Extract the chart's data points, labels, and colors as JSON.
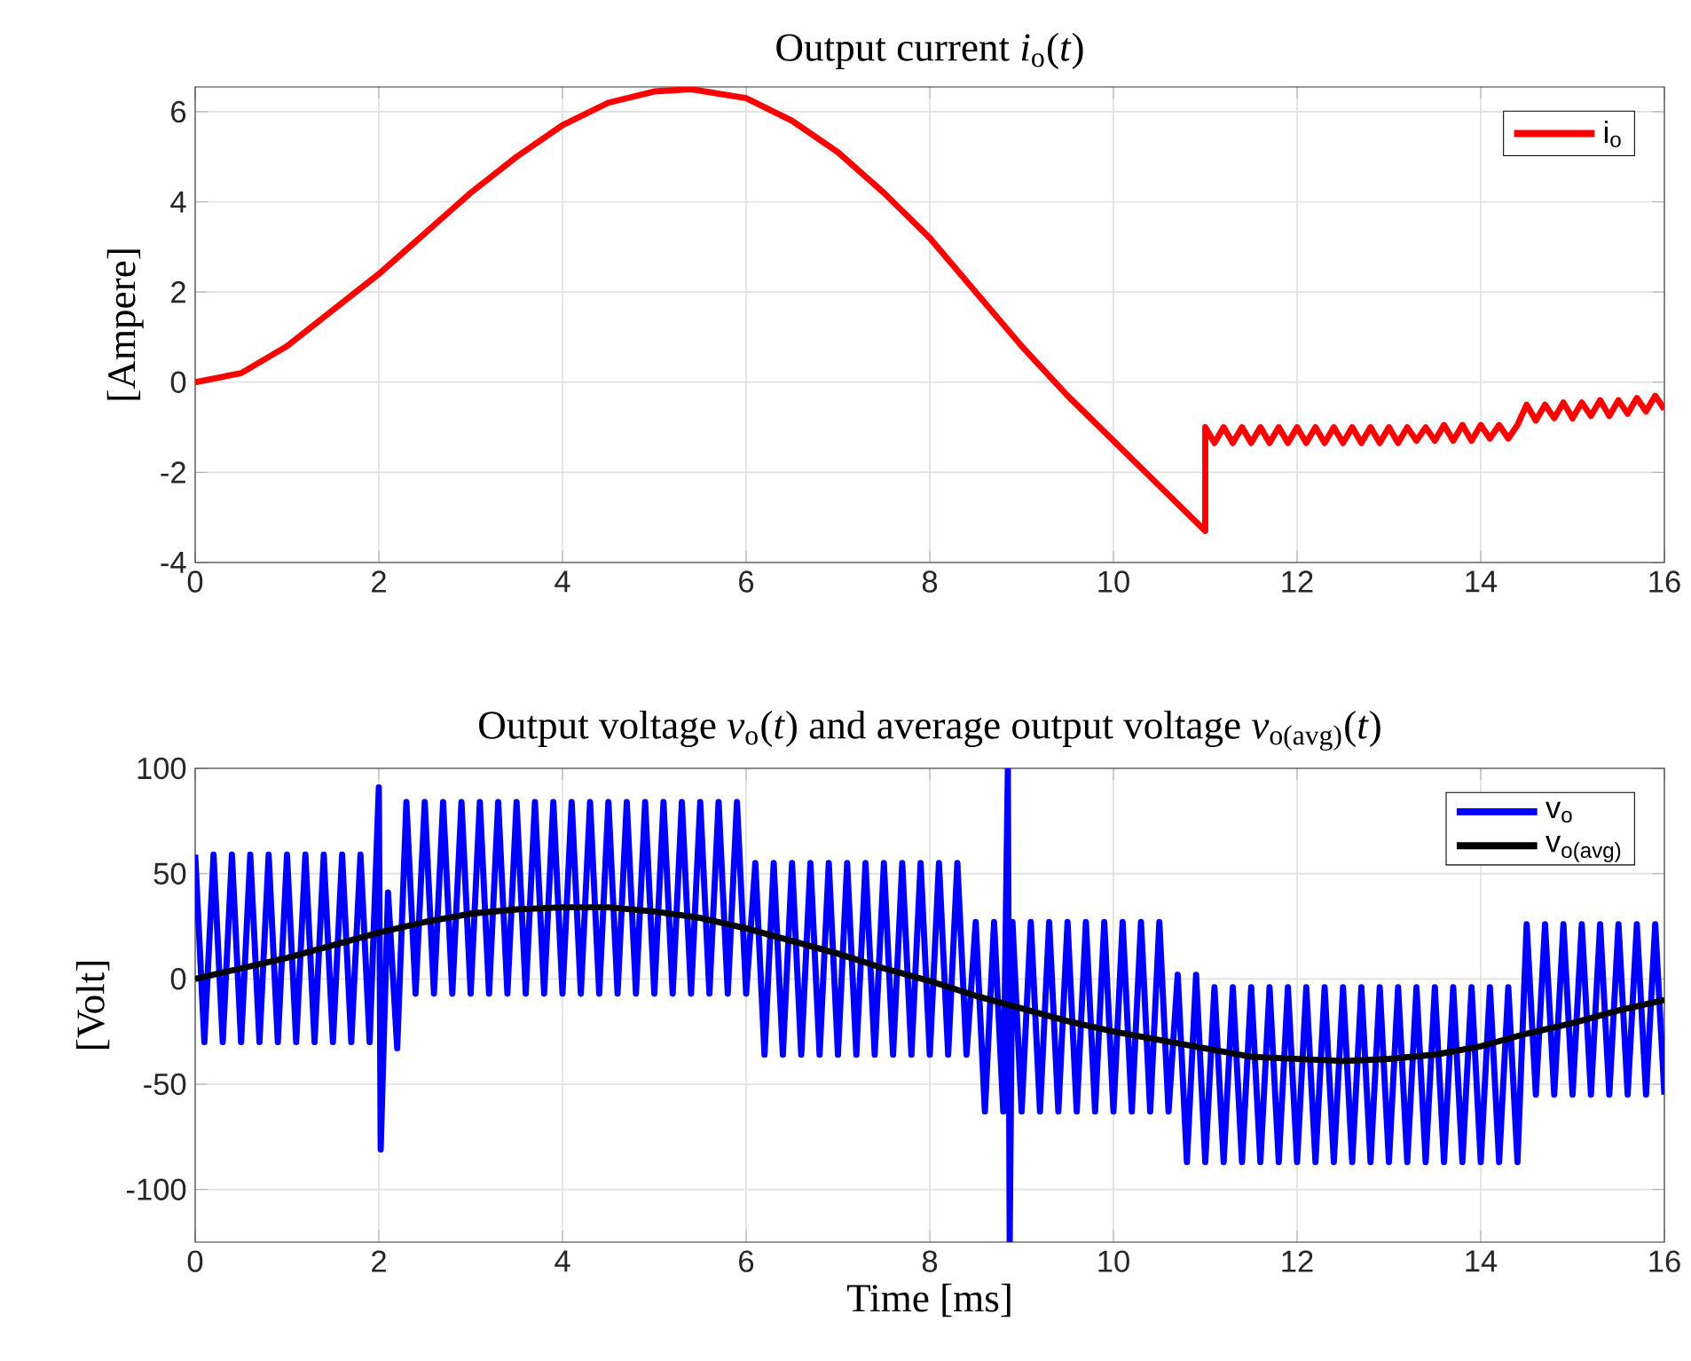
{
  "chart_data": [
    {
      "type": "line",
      "title": "Output current *i*$_{o}$(*t*)",
      "ylabel": "[Ampere]",
      "xlim": [
        0,
        16
      ],
      "xticks": [
        0,
        2,
        4,
        6,
        8,
        10,
        12,
        14,
        16
      ],
      "ylim": [
        -4,
        6.55
      ],
      "yticks": [
        -4,
        -2,
        0,
        2,
        4,
        6
      ],
      "grid": true,
      "legend": "top right",
      "series": [
        {
          "name": "i$_{o}$",
          "color": "#ff0000",
          "x": [
            0,
            0.5,
            1,
            1.5,
            2,
            2.5,
            3,
            3.5,
            4,
            4.5,
            5,
            5.4,
            6,
            6.5,
            7,
            7.5,
            8,
            8.5,
            9,
            9.5,
            10,
            10.5,
            11.0,
            11.0,
            11.1,
            11.2,
            11.3,
            11.4,
            11.5,
            11.6,
            11.7,
            11.8,
            11.9,
            12.0,
            12.1,
            12.2,
            12.3,
            12.4,
            12.5,
            12.6,
            12.7,
            12.8,
            12.9,
            13.0,
            13.1,
            13.2,
            13.3,
            13.4,
            13.5,
            13.6,
            13.7,
            13.8,
            13.9,
            14.0,
            14.1,
            14.2,
            14.3,
            14.4,
            14.5,
            14.6,
            14.7,
            14.8,
            14.9,
            15.0,
            15.1,
            15.2,
            15.3,
            15.4,
            15.5,
            15.6,
            15.7,
            15.8,
            15.9,
            16.0
          ],
          "values": [
            0,
            0.2,
            0.8,
            1.6,
            2.4,
            3.3,
            4.2,
            5.0,
            5.7,
            6.2,
            6.45,
            6.5,
            6.3,
            5.8,
            5.1,
            4.2,
            3.2,
            2.0,
            0.8,
            -0.3,
            -1.3,
            -2.3,
            -3.3,
            -1.0,
            -1.35,
            -1.0,
            -1.35,
            -1.0,
            -1.35,
            -1.0,
            -1.35,
            -1.0,
            -1.35,
            -1.0,
            -1.35,
            -1.0,
            -1.35,
            -1.0,
            -1.35,
            -1.0,
            -1.35,
            -1.0,
            -1.35,
            -1.0,
            -1.35,
            -1.0,
            -1.3,
            -1.0,
            -1.3,
            -0.95,
            -1.3,
            -0.95,
            -1.3,
            -0.95,
            -1.25,
            -0.95,
            -1.25,
            -0.95,
            -0.5,
            -0.85,
            -0.5,
            -0.8,
            -0.45,
            -0.8,
            -0.45,
            -0.75,
            -0.4,
            -0.75,
            -0.4,
            -0.7,
            -0.35,
            -0.65,
            -0.3,
            -0.6
          ]
        }
      ]
    },
    {
      "type": "line",
      "title": "Output voltage *v*$_{o}$(*t*) and average output voltage *v*$_{o(avg)}$(*t*)",
      "xlabel": "Time [ms]",
      "ylabel": "[Volt]",
      "xlim": [
        0,
        16
      ],
      "xticks": [
        0,
        2,
        4,
        6,
        8,
        10,
        12,
        14,
        16
      ],
      "ylim": [
        -125,
        100
      ],
      "yticks": [
        -100,
        -50,
        0,
        50,
        100
      ],
      "grid": true,
      "legend": "top right",
      "series": [
        {
          "name": "v$_{o}$",
          "color": "#0000ff",
          "x": [
            0,
            0.1,
            0.2,
            0.3,
            0.4,
            0.5,
            0.6,
            0.7,
            0.8,
            0.9,
            1.0,
            1.1,
            1.2,
            1.3,
            1.4,
            1.5,
            1.6,
            1.7,
            1.8,
            1.9,
            2.0,
            2.02,
            2.1,
            2.2,
            2.3,
            2.4,
            2.5,
            2.6,
            2.7,
            2.8,
            2.9,
            3.0,
            3.1,
            3.2,
            3.3,
            3.4,
            3.5,
            3.6,
            3.7,
            3.8,
            3.9,
            4.0,
            4.1,
            4.2,
            4.3,
            4.4,
            4.5,
            4.6,
            4.7,
            4.8,
            4.9,
            5.0,
            5.1,
            5.2,
            5.3,
            5.4,
            5.5,
            5.6,
            5.7,
            5.8,
            5.9,
            6.0,
            6.1,
            6.2,
            6.3,
            6.4,
            6.5,
            6.6,
            6.7,
            6.8,
            6.9,
            7.0,
            7.1,
            7.2,
            7.3,
            7.4,
            7.5,
            7.6,
            7.7,
            7.8,
            7.9,
            8.0,
            8.1,
            8.2,
            8.3,
            8.4,
            8.5,
            8.6,
            8.7,
            8.8,
            8.85,
            8.87,
            8.9,
            9.0,
            9.1,
            9.2,
            9.3,
            9.4,
            9.5,
            9.6,
            9.7,
            9.8,
            9.9,
            10.0,
            10.1,
            10.2,
            10.3,
            10.4,
            10.5,
            10.6,
            10.7,
            10.8,
            10.9,
            11.0,
            11.1,
            11.2,
            11.3,
            11.4,
            11.5,
            11.6,
            11.7,
            11.8,
            11.9,
            12.0,
            12.1,
            12.2,
            12.3,
            12.4,
            12.5,
            12.6,
            12.7,
            12.8,
            12.9,
            13.0,
            13.1,
            13.2,
            13.3,
            13.4,
            13.5,
            13.6,
            13.7,
            13.8,
            13.9,
            14.0,
            14.1,
            14.2,
            14.3,
            14.4,
            14.5,
            14.6,
            14.7,
            14.8,
            14.9,
            15.0,
            15.1,
            15.2,
            15.3,
            15.4,
            15.5,
            15.6,
            15.7,
            15.8,
            15.9,
            16.0
          ],
          "values": [
            59,
            -30,
            59,
            -30,
            59,
            -30,
            59,
            -30,
            59,
            -30,
            59,
            -30,
            59,
            -30,
            59,
            -30,
            59,
            -30,
            59,
            -30,
            91,
            -81,
            41,
            -33,
            84,
            -7,
            84,
            -7,
            84,
            -7,
            84,
            -7,
            84,
            -7,
            84,
            -7,
            84,
            -7,
            84,
            -7,
            84,
            -7,
            84,
            -7,
            84,
            -7,
            84,
            -7,
            84,
            -7,
            84,
            -7,
            84,
            -7,
            84,
            -7,
            84,
            -7,
            84,
            -7,
            84,
            -7,
            55,
            -36,
            55,
            -36,
            55,
            -36,
            55,
            -36,
            55,
            -36,
            55,
            -36,
            55,
            -36,
            55,
            -36,
            55,
            -36,
            55,
            -36,
            55,
            -36,
            55,
            -36,
            27,
            -63,
            27,
            -63,
            100,
            -125,
            27,
            -63,
            27,
            -63,
            27,
            -63,
            27,
            -63,
            27,
            -63,
            27,
            -63,
            27,
            -63,
            27,
            -63,
            27,
            -63,
            2,
            -87,
            2,
            -87,
            -4,
            -87,
            -4,
            -87,
            -4,
            -87,
            -4,
            -87,
            -4,
            -87,
            -4,
            -87,
            -4,
            -87,
            -4,
            -87,
            -4,
            -87,
            -4,
            -87,
            -4,
            -87,
            -4,
            -87,
            -4,
            -87,
            -4,
            -87,
            -4,
            -87,
            -4,
            -87,
            -4,
            -87,
            26,
            -55,
            26,
            -55,
            26,
            -55,
            26,
            -55,
            26,
            -55,
            26,
            -55,
            26,
            -55,
            26,
            -55
          ]
        },
        {
          "name": "v$_{o(avg)}$",
          "color": "#000000",
          "x": [
            0,
            0.5,
            1,
            1.5,
            2,
            2.5,
            3,
            3.5,
            4,
            4.5,
            5,
            5.5,
            6,
            6.5,
            7,
            7.5,
            8,
            8.5,
            9,
            9.5,
            10,
            10.5,
            11,
            11.5,
            12,
            12.5,
            13,
            13.5,
            14,
            14.5,
            15,
            15.5,
            16
          ],
          "values": [
            0,
            5,
            10,
            16,
            22,
            27,
            31,
            33,
            34,
            34,
            32,
            29,
            24,
            18,
            12,
            5,
            -1,
            -8,
            -14,
            -20,
            -25,
            -29,
            -33,
            -37,
            -38,
            -39,
            -38,
            -36,
            -32,
            -26,
            -21,
            -15,
            -10
          ]
        }
      ]
    }
  ]
}
